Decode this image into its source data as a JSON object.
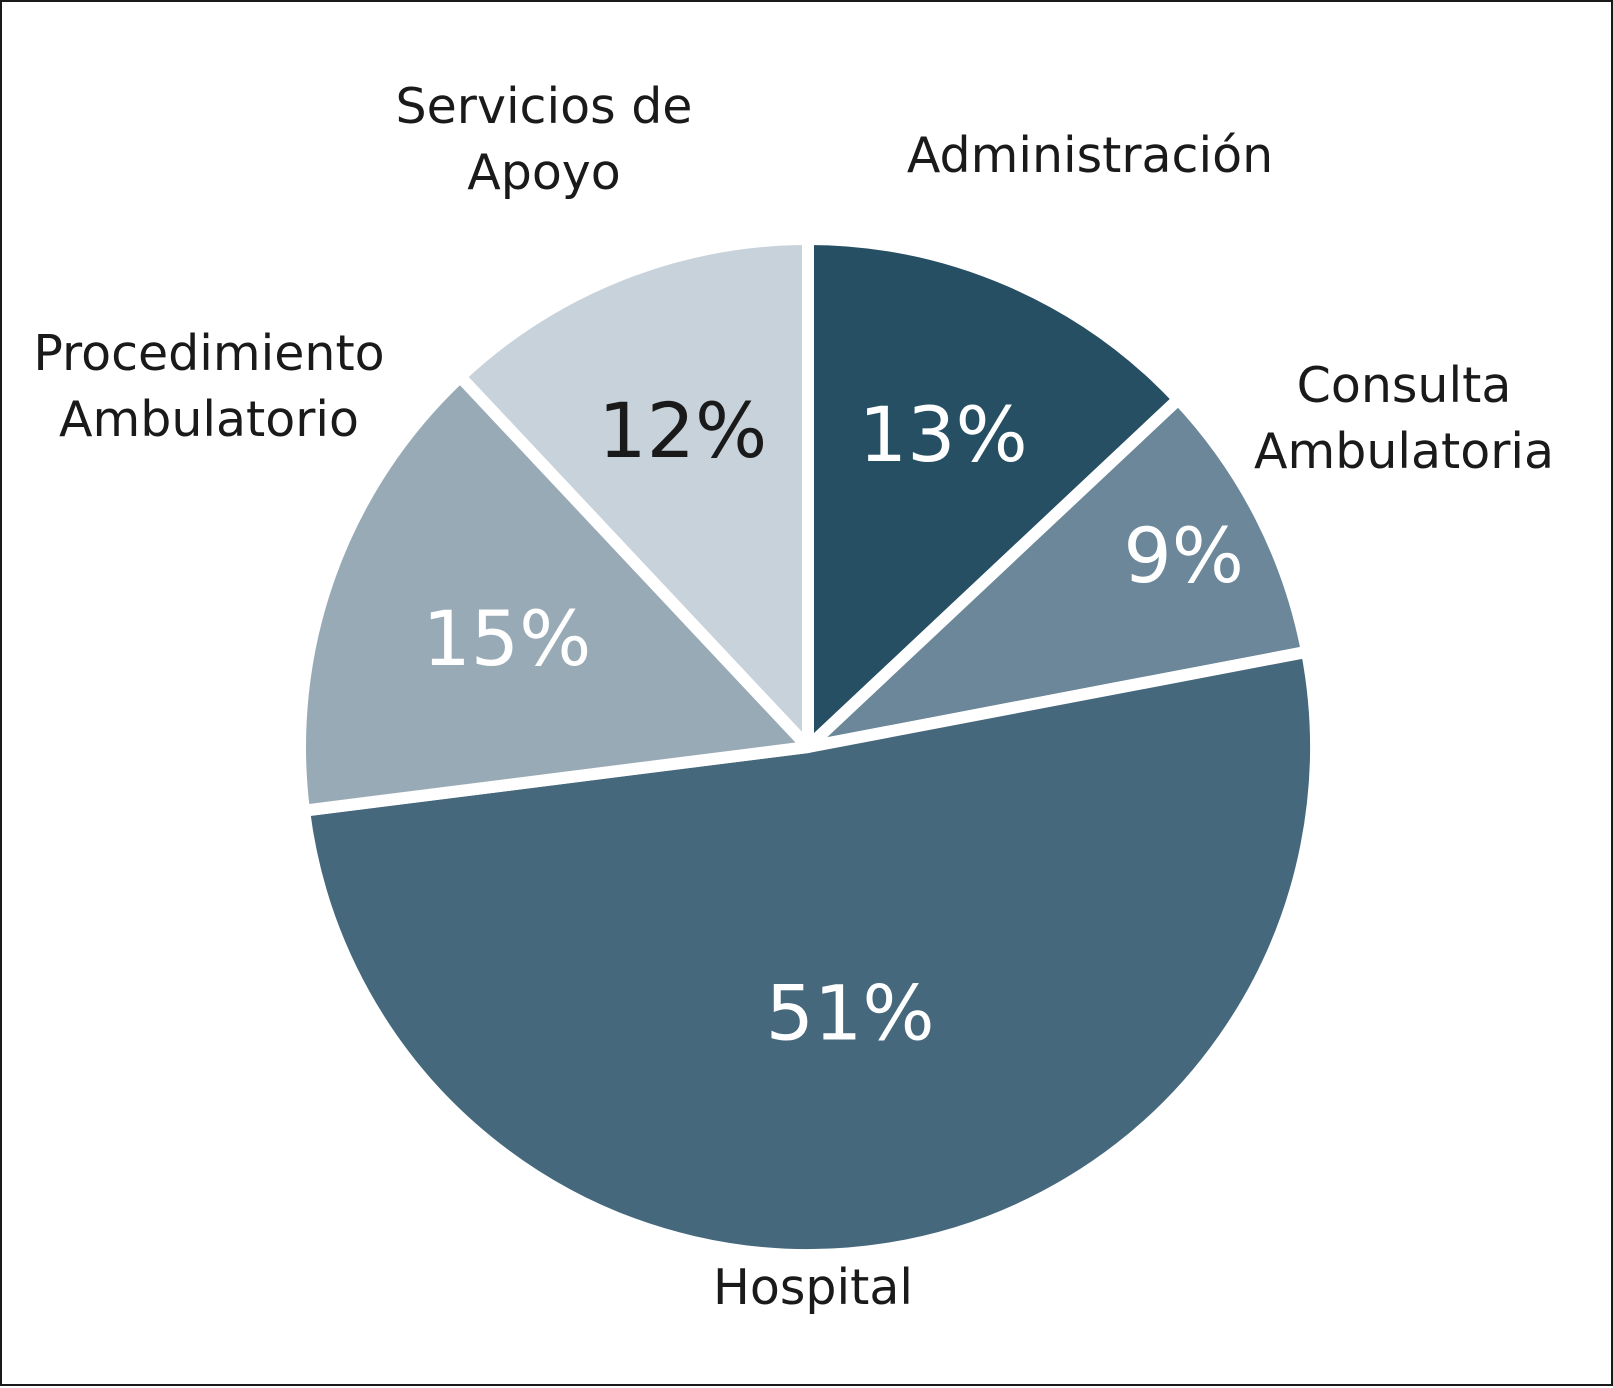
{
  "chart_data": {
    "type": "pie",
    "title": "",
    "slices": [
      {
        "label_lines": [
          "Administración"
        ],
        "value": 13,
        "value_label": "13%",
        "color": "#264f63",
        "text_color": "#ffffff"
      },
      {
        "label_lines": [
          "Consulta",
          "Ambulatoria"
        ],
        "value": 9,
        "value_label": "9%",
        "color": "#6b8799",
        "text_color": "#ffffff"
      },
      {
        "label_lines": [
          "Hospital"
        ],
        "value": 51,
        "value_label": "51%",
        "color": "#45687d",
        "text_color": "#ffffff"
      },
      {
        "label_lines": [
          "Procedimiento",
          "Ambulatorio"
        ],
        "value": 15,
        "value_label": "15%",
        "color": "#99aab7",
        "text_color": "#ffffff"
      },
      {
        "label_lines": [
          "Servicios de",
          "Apoyo"
        ],
        "value": 12,
        "value_label": "12%",
        "color": "#c7d2db",
        "text_color": "#1a1a1a"
      }
    ],
    "start_angle_deg": 0,
    "direction": "clockwise",
    "separator_color": "#ffffff",
    "legend": "none"
  }
}
